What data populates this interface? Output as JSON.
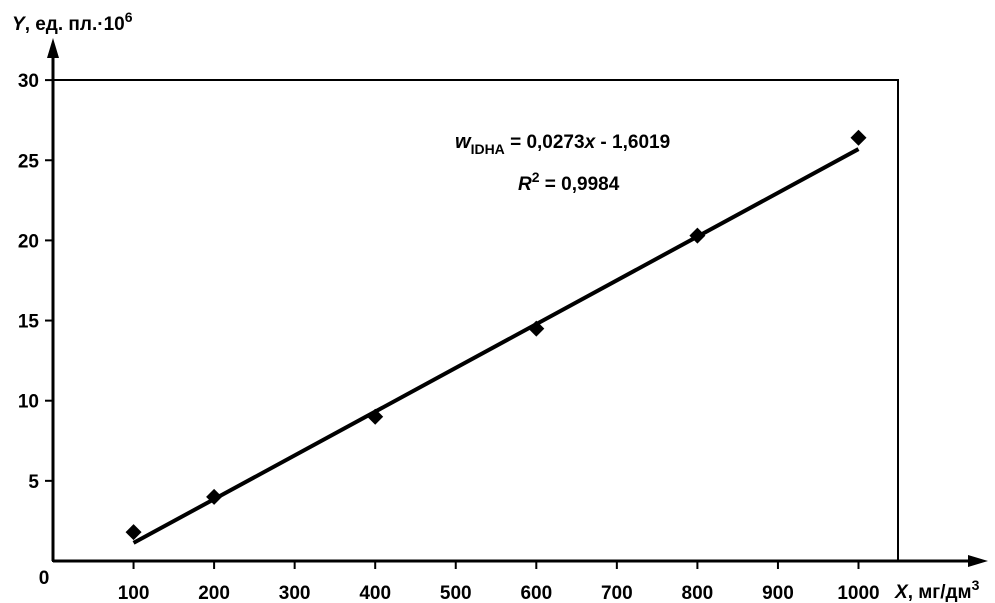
{
  "chart_data": {
    "type": "scatter",
    "title": "",
    "xlabel": {
      "var": "X",
      "unit": ", мг/дм",
      "sup": "3"
    },
    "ylabel": {
      "var": "Y",
      "unit": ", ед. пл.·10",
      "sup": "6"
    },
    "xlim": [
      0,
      1050
    ],
    "ylim": [
      0,
      30
    ],
    "x_ticks": [
      100,
      200,
      300,
      400,
      500,
      600,
      700,
      800,
      900,
      1000
    ],
    "y_ticks": [
      5,
      10,
      15,
      20,
      25,
      30
    ],
    "origin_label": "0",
    "grid": false,
    "series": [
      {
        "points": [
          {
            "x": 100,
            "y": 1.8
          },
          {
            "x": 200,
            "y": 4.0
          },
          {
            "x": 400,
            "y": 9.0
          },
          {
            "x": 600,
            "y": 14.5
          },
          {
            "x": 800,
            "y": 20.3
          },
          {
            "x": 1000,
            "y": 26.4
          }
        ],
        "marker": "diamond",
        "color": "#000000"
      }
    ],
    "trendline": {
      "slope": 0.0273,
      "intercept": -1.6019,
      "x_range": [
        100,
        1000
      ],
      "color": "#000000"
    },
    "annotations": {
      "equation": {
        "var": "w",
        "sub": "IDHA",
        "rest": " = 0,0273",
        "xvar": "x",
        "tail": " - 1,6019"
      },
      "r2": {
        "var": "R",
        "sup": "2",
        "rest": " = 0,9984"
      }
    }
  }
}
